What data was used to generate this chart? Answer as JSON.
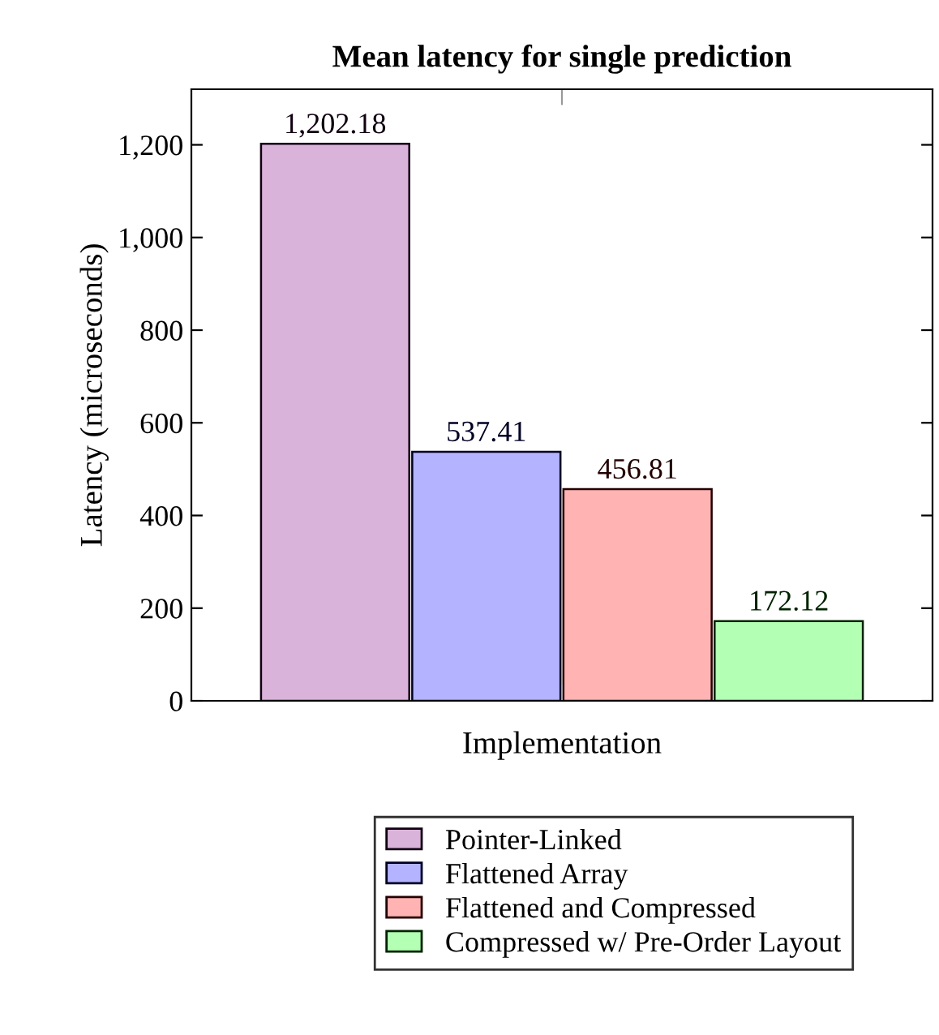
{
  "chart_data": {
    "type": "bar",
    "title": "Mean latency for single prediction",
    "xlabel": "Implementation",
    "ylabel": "Latency (microseconds)",
    "categories": [
      null
    ],
    "series": [
      {
        "name": "Pointer-Linked",
        "color": "#d9b3d9",
        "values": [
          1202.18
        ],
        "value_labels": [
          "1,202.18"
        ]
      },
      {
        "name": "Flattened Array",
        "color": "#b3b3ff",
        "values": [
          537.41
        ],
        "value_labels": [
          "537.41"
        ]
      },
      {
        "name": "Flattened and Compressed",
        "color": "#ffb3b3",
        "values": [
          456.81
        ],
        "value_labels": [
          "456.81"
        ]
      },
      {
        "name": "Compressed w/ Pre-Order Layout",
        "color": "#b3ffb3",
        "values": [
          172.12
        ],
        "value_labels": [
          "172.12"
        ]
      }
    ],
    "ylim": [
      0,
      1320
    ],
    "yticks": [
      0,
      200,
      400,
      600,
      800,
      {
        "value": 1000,
        "label": "1,000"
      },
      {
        "value": 1200,
        "label": "1,200"
      }
    ],
    "grid": false,
    "legend": "bottom"
  }
}
